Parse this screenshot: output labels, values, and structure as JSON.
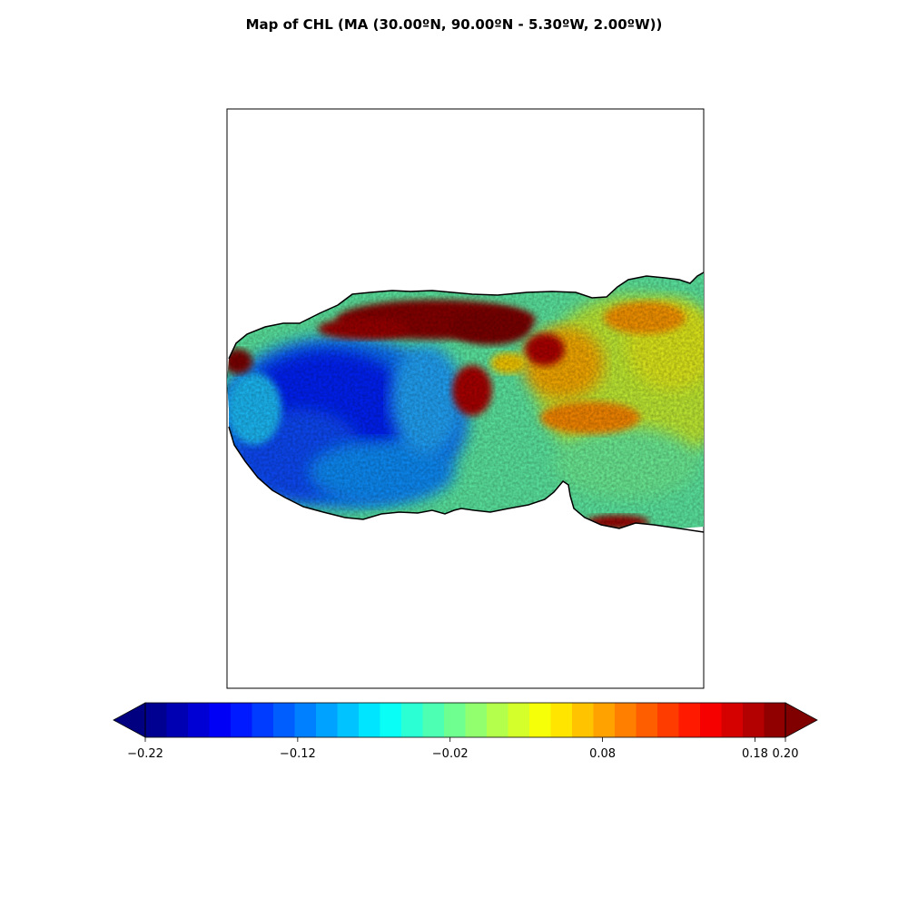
{
  "title": "Map of CHL (MA (30.00ºN, 90.00ºN - 5.30ºW, 2.00ºW))",
  "colorbar": {
    "min": -0.22,
    "max": 0.2,
    "extend": "both",
    "levels": 30,
    "ticks": [
      {
        "value": -0.22,
        "label": "−0.22"
      },
      {
        "value": -0.12,
        "label": "−0.12"
      },
      {
        "value": -0.02,
        "label": "−0.02"
      },
      {
        "value": 0.08,
        "label": "0.08"
      },
      {
        "value": 0.18,
        "label": "0.18"
      },
      {
        "value": 0.2,
        "label": "0.20"
      }
    ],
    "colormap": "jet"
  }
}
